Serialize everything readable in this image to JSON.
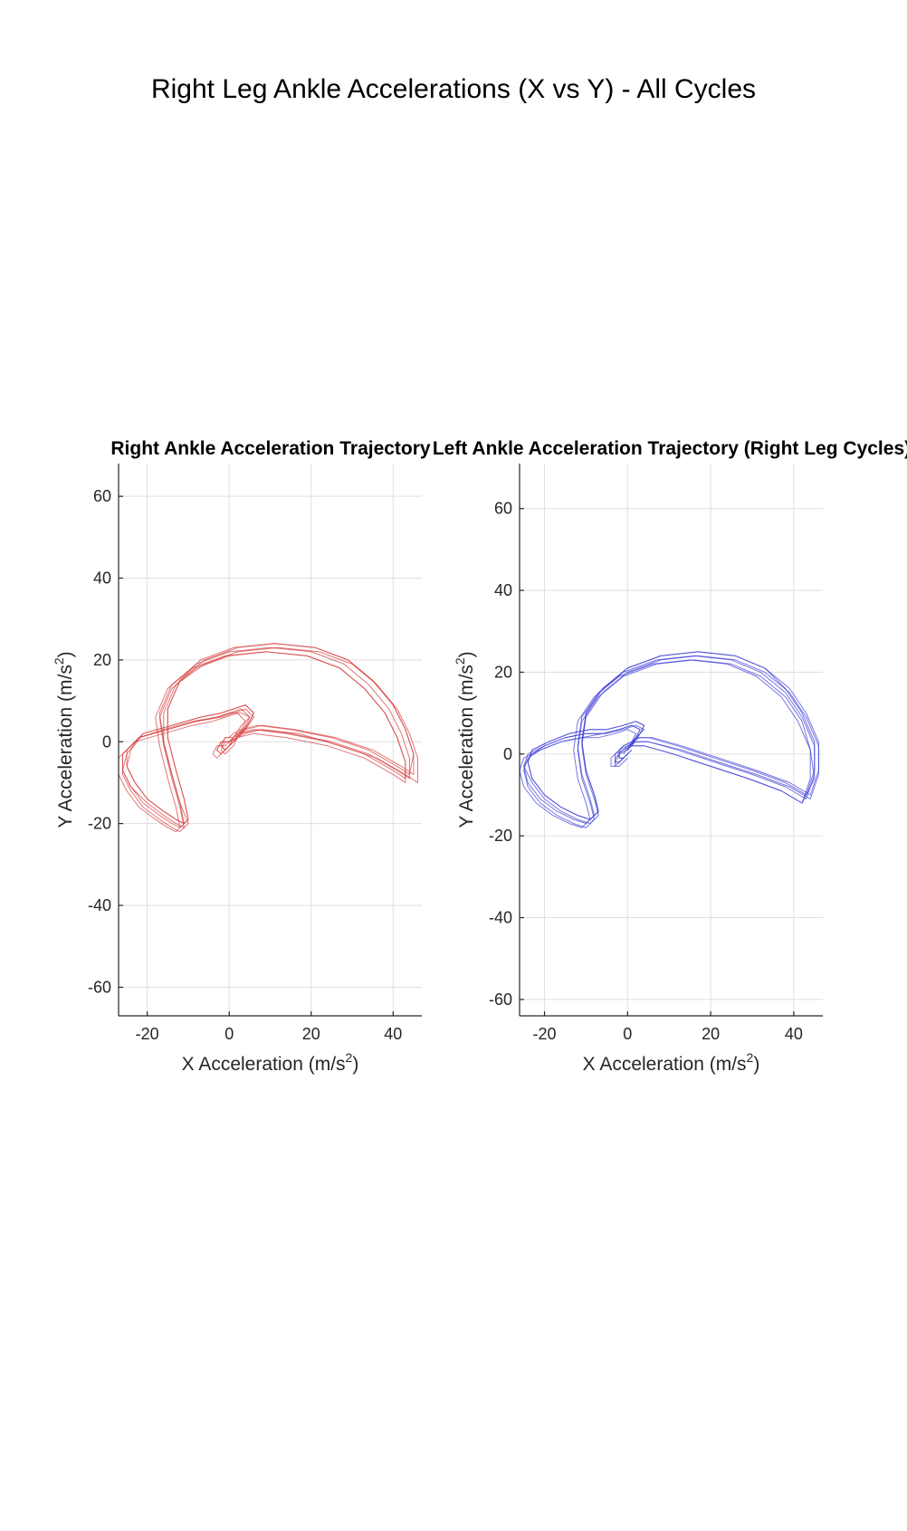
{
  "figure": {
    "title": "Right Leg Ankle Accelerations (X vs Y) - All Cycles"
  },
  "chart_data": [
    {
      "type": "scatter",
      "title": "Right Ankle Acceleration Trajectory",
      "xlabel": "X Acceleration (m/s",
      "xlabel_sup": "2",
      "xlabel_close": ")",
      "ylabel": "Y Acceleration (m/s",
      "ylabel_sup": "2",
      "ylabel_close": ")",
      "xlim": [
        -27,
        47
      ],
      "ylim": [
        -67,
        68
      ],
      "xticks": [
        -20,
        0,
        20,
        40
      ],
      "yticks": [
        -60,
        -40,
        -20,
        0,
        20,
        40,
        60
      ],
      "grid": true,
      "color": "#d63a3a",
      "series": [
        {
          "x": [
            2,
            4,
            5,
            3,
            0,
            -3,
            -8,
            -15,
            -22,
            -26,
            -26,
            -24,
            -21,
            -17,
            -14,
            -12,
            -11,
            -12,
            -14,
            -16,
            -17,
            -14,
            -8,
            0,
            10,
            20,
            28,
            34,
            39,
            42,
            44,
            44,
            41,
            34,
            25,
            15,
            7,
            3,
            1,
            0,
            -2,
            -3,
            -2,
            0,
            2
          ],
          "y": [
            1,
            4,
            6,
            8,
            7,
            6,
            5,
            3,
            1,
            -3,
            -7,
            -11,
            -15,
            -18,
            -20,
            -21,
            -20,
            -15,
            -8,
            0,
            7,
            14,
            19,
            22,
            23,
            22,
            19,
            14,
            8,
            2,
            -4,
            -9,
            -7,
            -3,
            0,
            2,
            3,
            2,
            1,
            0,
            0,
            -2,
            -3,
            -1,
            1
          ]
        },
        {
          "x": [
            3,
            5,
            6,
            4,
            1,
            -2,
            -7,
            -14,
            -21,
            -25,
            -25,
            -23,
            -20,
            -16,
            -13,
            -11,
            -10,
            -11,
            -13,
            -15,
            -15,
            -12,
            -7,
            1,
            11,
            21,
            29,
            35,
            40,
            43,
            45,
            45,
            42,
            35,
            26,
            16,
            8,
            4,
            2,
            1,
            -1,
            -2,
            -1,
            1,
            3
          ],
          "y": [
            2,
            5,
            7,
            9,
            8,
            7,
            6,
            4,
            2,
            -2,
            -6,
            -10,
            -14,
            -17,
            -19,
            -20,
            -19,
            -14,
            -7,
            1,
            8,
            15,
            20,
            23,
            24,
            23,
            20,
            15,
            9,
            3,
            -3,
            -8,
            -6,
            -2,
            1,
            3,
            4,
            3,
            2,
            1,
            1,
            -1,
            -2,
            0,
            2
          ]
        },
        {
          "x": [
            1,
            3,
            4,
            2,
            -1,
            -4,
            -9,
            -16,
            -23,
            -27,
            -27,
            -25,
            -22,
            -18,
            -15,
            -13,
            -12,
            -13,
            -15,
            -17,
            -18,
            -15,
            -9,
            -1,
            9,
            19,
            27,
            33,
            38,
            41,
            43,
            43,
            40,
            33,
            24,
            14,
            6,
            2,
            0,
            -1,
            -3,
            -4,
            -3,
            -1,
            1
          ],
          "y": [
            0,
            3,
            5,
            7,
            6,
            5,
            4,
            2,
            0,
            -4,
            -8,
            -12,
            -16,
            -19,
            -21,
            -22,
            -21,
            -16,
            -9,
            -1,
            6,
            13,
            18,
            21,
            22,
            21,
            18,
            13,
            7,
            1,
            -5,
            -10,
            -8,
            -4,
            -1,
            1,
            2,
            1,
            0,
            -1,
            -1,
            -3,
            -4,
            -2,
            0
          ]
        },
        {
          "x": [
            2,
            4,
            6,
            4,
            1,
            -2,
            -8,
            -15,
            -22,
            -25,
            -26,
            -24,
            -20,
            -16,
            -13,
            -11,
            -10,
            -12,
            -14,
            -16,
            -16,
            -13,
            -6,
            2,
            12,
            22,
            30,
            36,
            41,
            44,
            46,
            46,
            43,
            36,
            27,
            17,
            8,
            4,
            2,
            0,
            -1,
            -2,
            -1,
            1,
            2
          ],
          "y": [
            1,
            3,
            6,
            8,
            7,
            6,
            5,
            3,
            1,
            -3,
            -7,
            -11,
            -15,
            -18,
            -20,
            -21,
            -20,
            -15,
            -8,
            0,
            7,
            14,
            19,
            22,
            23,
            22,
            19,
            14,
            8,
            2,
            -4,
            -10,
            -8,
            -4,
            -1,
            2,
            3,
            2,
            1,
            0,
            0,
            -2,
            -3,
            -1,
            1
          ]
        },
        {
          "x": [
            1,
            3,
            5,
            3,
            0,
            -3,
            -9,
            -16,
            -22,
            -26,
            -26,
            -24,
            -21,
            -17,
            -14,
            -12,
            -11,
            -12,
            -14,
            -16,
            -17,
            -14,
            -8,
            0,
            9,
            19,
            27,
            33,
            38,
            41,
            43,
            43,
            40,
            33,
            24,
            14,
            6,
            2,
            1,
            0,
            -2,
            -3,
            -2,
            0,
            1
          ],
          "y": [
            1,
            4,
            6,
            7,
            7,
            6,
            5,
            3,
            1,
            -3,
            -8,
            -12,
            -16,
            -19,
            -21,
            -22,
            -21,
            -16,
            -9,
            -1,
            6,
            13,
            18,
            21,
            22,
            21,
            18,
            13,
            7,
            1,
            -5,
            -9,
            -7,
            -3,
            0,
            2,
            3,
            2,
            1,
            0,
            0,
            -2,
            -3,
            -1,
            1
          ]
        },
        {
          "x": [
            3,
            5,
            6,
            4,
            1,
            -2,
            -7,
            -14,
            -21,
            -24,
            -25,
            -23,
            -20,
            -16,
            -13,
            -11,
            -10,
            -11,
            -13,
            -15,
            -15,
            -12,
            -6,
            2,
            11,
            21,
            29,
            35,
            40,
            43,
            45,
            44,
            41,
            34,
            25,
            15,
            7,
            3,
            1,
            0,
            -1,
            -2,
            -1,
            1,
            3
          ],
          "y": [
            2,
            5,
            7,
            9,
            8,
            7,
            6,
            4,
            2,
            -2,
            -6,
            -10,
            -14,
            -17,
            -19,
            -20,
            -19,
            -14,
            -7,
            1,
            8,
            15,
            20,
            23,
            24,
            23,
            20,
            15,
            9,
            3,
            -3,
            -8,
            -6,
            -2,
            1,
            3,
            4,
            3,
            2,
            1,
            1,
            -1,
            -2,
            0,
            2
          ]
        }
      ]
    },
    {
      "type": "scatter",
      "title": "Left Ankle Acceleration Trajectory (Right Leg Cycles)",
      "xlabel": "X Acceleration (m/s",
      "xlabel_sup": "2",
      "xlabel_close": ")",
      "ylabel": "Y Acceleration (m/s",
      "ylabel_sup": "2",
      "ylabel_close": ")",
      "xlim": [
        -26,
        47
      ],
      "ylim": [
        -64,
        71
      ],
      "xticks": [
        -20,
        0,
        20,
        40
      ],
      "yticks": [
        -60,
        -40,
        -20,
        0,
        20,
        40,
        60
      ],
      "grid": true,
      "color": "#3a3ad6",
      "series": [
        {
          "x": [
            0,
            2,
            3,
            1,
            -2,
            -6,
            -10,
            -15,
            -20,
            -24,
            -25,
            -24,
            -21,
            -17,
            -13,
            -10,
            -8,
            -9,
            -11,
            -12,
            -11,
            -7,
            -1,
            7,
            16,
            25,
            32,
            38,
            42,
            45,
            45,
            43,
            38,
            30,
            21,
            12,
            5,
            2,
            0,
            -2,
            -3,
            -3,
            -2,
            0
          ],
          "y": [
            1,
            4,
            6,
            7,
            6,
            5,
            5,
            4,
            2,
            0,
            -3,
            -7,
            -11,
            -14,
            -16,
            -17,
            -15,
            -11,
            -5,
            2,
            9,
            15,
            20,
            23,
            24,
            23,
            20,
            15,
            9,
            2,
            -5,
            -11,
            -8,
            -5,
            -2,
            1,
            3,
            3,
            2,
            1,
            0,
            -2,
            -2,
            0
          ]
        },
        {
          "x": [
            1,
            3,
            4,
            2,
            -1,
            -5,
            -9,
            -14,
            -19,
            -23,
            -24,
            -23,
            -20,
            -16,
            -12,
            -9,
            -7,
            -8,
            -10,
            -11,
            -10,
            -6,
            0,
            8,
            17,
            26,
            33,
            39,
            43,
            46,
            46,
            44,
            39,
            31,
            22,
            13,
            6,
            3,
            1,
            -1,
            -2,
            -2,
            -1,
            1
          ],
          "y": [
            2,
            5,
            7,
            8,
            7,
            6,
            6,
            5,
            3,
            1,
            -2,
            -6,
            -10,
            -13,
            -15,
            -16,
            -14,
            -10,
            -4,
            3,
            10,
            16,
            21,
            24,
            25,
            24,
            21,
            16,
            10,
            3,
            -4,
            -10,
            -7,
            -4,
            -1,
            2,
            4,
            4,
            3,
            2,
            1,
            -1,
            -1,
            1
          ]
        },
        {
          "x": [
            -1,
            1,
            2,
            0,
            -3,
            -7,
            -11,
            -16,
            -21,
            -25,
            -26,
            -25,
            -22,
            -18,
            -14,
            -11,
            -9,
            -10,
            -12,
            -13,
            -12,
            -8,
            -2,
            6,
            15,
            24,
            31,
            37,
            41,
            44,
            44,
            42,
            37,
            29,
            20,
            11,
            4,
            1,
            -1,
            -3,
            -4,
            -4,
            -3,
            -1
          ],
          "y": [
            0,
            3,
            5,
            6,
            5,
            4,
            4,
            3,
            1,
            -1,
            -4,
            -8,
            -12,
            -15,
            -17,
            -18,
            -16,
            -12,
            -6,
            1,
            8,
            14,
            19,
            22,
            23,
            22,
            19,
            14,
            8,
            1,
            -6,
            -12,
            -9,
            -6,
            -3,
            0,
            2,
            2,
            1,
            0,
            -1,
            -3,
            -3,
            -1
          ]
        },
        {
          "x": [
            0,
            2,
            4,
            2,
            -1,
            -5,
            -10,
            -15,
            -20,
            -23,
            -25,
            -23,
            -20,
            -16,
            -12,
            -9,
            -7,
            -8,
            -10,
            -11,
            -10,
            -6,
            0,
            8,
            17,
            26,
            33,
            39,
            43,
            46,
            46,
            44,
            39,
            31,
            22,
            13,
            5,
            2,
            0,
            -1,
            -2,
            -3,
            -2,
            0
          ],
          "y": [
            1,
            4,
            6,
            7,
            6,
            5,
            5,
            4,
            2,
            0,
            -3,
            -7,
            -11,
            -14,
            -16,
            -17,
            -15,
            -11,
            -5,
            2,
            9,
            15,
            20,
            23,
            24,
            23,
            20,
            15,
            9,
            2,
            -5,
            -11,
            -8,
            -5,
            -2,
            1,
            3,
            3,
            2,
            1,
            0,
            -2,
            -2,
            0
          ]
        },
        {
          "x": [
            0,
            2,
            3,
            1,
            -2,
            -6,
            -11,
            -16,
            -21,
            -24,
            -25,
            -24,
            -21,
            -17,
            -13,
            -10,
            -8,
            -9,
            -11,
            -12,
            -11,
            -7,
            -1,
            7,
            16,
            25,
            32,
            38,
            42,
            44,
            45,
            42,
            37,
            29,
            20,
            11,
            4,
            1,
            0,
            -2,
            -3,
            -3,
            -2,
            0
          ],
          "y": [
            1,
            4,
            6,
            7,
            6,
            5,
            4,
            3,
            1,
            -1,
            -4,
            -8,
            -12,
            -15,
            -17,
            -18,
            -16,
            -12,
            -6,
            1,
            8,
            14,
            19,
            22,
            23,
            22,
            19,
            14,
            8,
            1,
            -6,
            -12,
            -9,
            -6,
            -3,
            0,
            2,
            2,
            1,
            0,
            -1,
            -3,
            -3,
            -1
          ]
        },
        {
          "x": [
            1,
            3,
            4,
            2,
            -1,
            -5,
            -9,
            -14,
            -19,
            -23,
            -24,
            -23,
            -20,
            -16,
            -12,
            -9,
            -7,
            -8,
            -10,
            -11,
            -10,
            -6,
            0,
            8,
            17,
            26,
            33,
            38,
            42,
            45,
            45,
            43,
            38,
            30,
            21,
            12,
            5,
            2,
            1,
            -1,
            -2,
            -2,
            -1,
            1
          ],
          "y": [
            2,
            5,
            7,
            8,
            7,
            6,
            6,
            5,
            3,
            1,
            -2,
            -6,
            -10,
            -13,
            -15,
            -16,
            -14,
            -10,
            -4,
            3,
            10,
            16,
            21,
            24,
            25,
            24,
            21,
            16,
            10,
            3,
            -4,
            -10,
            -7,
            -4,
            -1,
            2,
            4,
            4,
            3,
            2,
            1,
            -1,
            -1,
            1
          ]
        }
      ]
    }
  ]
}
